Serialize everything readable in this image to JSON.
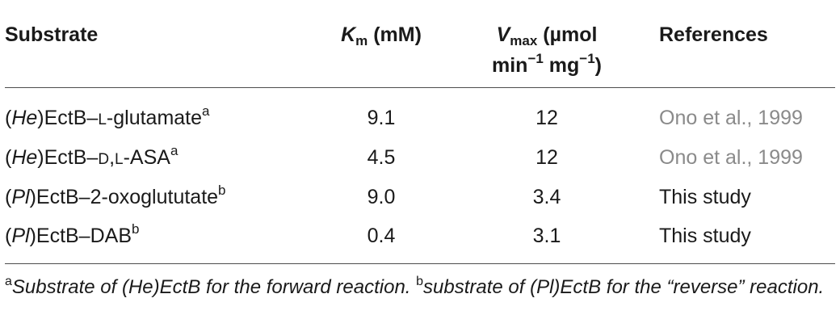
{
  "table": {
    "headers": {
      "substrate": "Substrate",
      "km_symbol": "K",
      "km_sub": "m",
      "km_unit": " (mM)",
      "vmax_symbol": "V",
      "vmax_sub": "max",
      "vmax_unit_line1": " (µmol",
      "vmax_unit_line2_a": "min",
      "vmax_unit_line2_a_sup": "−1",
      "vmax_unit_line2_b": " mg",
      "vmax_unit_line2_b_sup": "−1",
      "vmax_unit_line2_c": ")",
      "references": "References"
    },
    "rows": [
      {
        "sub_open": "(",
        "sub_org": "He",
        "sub_close": ")EctB–",
        "sub_sc1": "l",
        "sub_rest": "-glutamate",
        "sub_sup": "a",
        "km": "9.1",
        "vmax": "12",
        "ref": "Ono et al., 1999"
      },
      {
        "sub_open": "(",
        "sub_org": "He",
        "sub_close": ")EctB–",
        "sub_sc1": "d",
        "sub_mid": ",",
        "sub_sc2": "l",
        "sub_rest": "-ASA",
        "sub_sup": "a",
        "km": "4.5",
        "vmax": "12",
        "ref": "Ono et al., 1999"
      },
      {
        "sub_open": "(",
        "sub_org": "Pl",
        "sub_close": ")EctB–",
        "sub_rest": "2-oxoglututate",
        "sub_sup": "b",
        "km": "9.0",
        "vmax": "3.4",
        "ref": "This study"
      },
      {
        "sub_open": "(",
        "sub_org": "Pl",
        "sub_close": ")EctB–",
        "sub_rest": "DAB",
        "sub_sup": "b",
        "km": "0.4",
        "vmax": "3.1",
        "ref": "This study"
      }
    ]
  },
  "footnote": {
    "a_marker": "a",
    "a_text": "Substrate of (He)EctB for the forward reaction. ",
    "b_marker": "b",
    "b_text": "substrate of (Pl)EctB for the “reverse” reaction."
  },
  "colors": {
    "text": "#1a1a1a",
    "reference_link": "#8a8a8a",
    "rule": "#4d4d4d"
  }
}
